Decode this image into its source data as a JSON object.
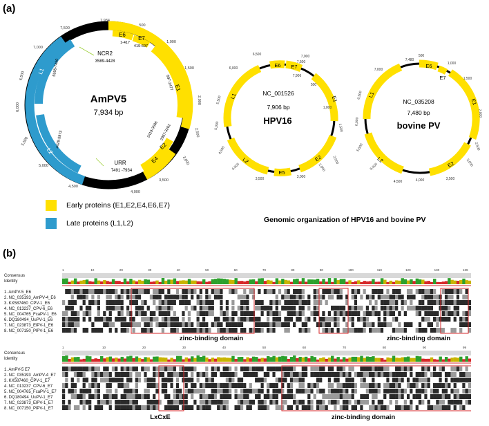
{
  "panel_a": {
    "label": "(a)",
    "ampv5": {
      "name": "AmPV5",
      "size": "7,934 bp",
      "ticks": [
        "7,934",
        "500",
        "1,000",
        "1,500",
        "2,000",
        "2,500",
        "3,000",
        "3,500",
        "4,000",
        "4,500",
        "5,000",
        "5,500",
        "6,000",
        "6,500",
        "7,000",
        "7,500"
      ],
      "genes": [
        {
          "name": "E6",
          "range": "1-417"
        },
        {
          "name": "E7",
          "range": "419-697"
        },
        {
          "name": "E1",
          "range": "697-2477"
        },
        {
          "name": "E2",
          "range": "2419-3586"
        },
        {
          "name": "E4",
          "range": "2967-3262"
        },
        {
          "name": "L2",
          "range": "4429-5973"
        },
        {
          "name": "L1",
          "range": "5995-7490"
        }
      ],
      "ncr2": {
        "name": "NCR2",
        "range": "3589-4428"
      },
      "urr": {
        "name": "URR",
        "range": "7491 -7934"
      }
    },
    "hpv16": {
      "accession": "NC_001526",
      "size": "7,906 bp",
      "name": "HPV16",
      "ticks": [
        "7,906",
        "500",
        "1,000",
        "1,500",
        "2,000",
        "2,500",
        "3,000",
        "3,500",
        "4,000",
        "4,500",
        "5,000",
        "5,500",
        "6,000",
        "6,500",
        "7,000",
        "7,500"
      ],
      "genes": [
        "E6",
        "E7",
        "E1",
        "E2",
        "E5",
        "L2",
        "L1"
      ]
    },
    "bovine": {
      "accession": "NC_035208",
      "size": "7,480 bp",
      "name": "bovine PV",
      "ticks": [
        "7,480",
        "500",
        "1,000",
        "1,500",
        "2,000",
        "2,500",
        "3,000",
        "3,500",
        "4,000",
        "4,500",
        "5,000",
        "5,500",
        "6,000",
        "6,500",
        "7,000"
      ],
      "genes": [
        "E6",
        "E7",
        "E1",
        "E2",
        "L2",
        "L1"
      ]
    },
    "legend": [
      {
        "label": "Early proteins   (E1,E2,E4,E6,E7)",
        "color": "#ffe000"
      },
      {
        "label": "Late proteins  (L1,L2)",
        "color": "#2e9bcd"
      }
    ],
    "caption": "Genomic organization of HPV16 and bovine PV"
  },
  "panel_b": {
    "label": "(b)",
    "top_block": {
      "rows": [
        "Consensus",
        "Identity",
        "",
        "1. AmPV-5_E6",
        "2. NC_035193_AmPV-4_E6",
        "3. KX587460_CPV-1_E6",
        "4. NC_013237_CPV-6_E6",
        "5. NC_004765_FcaPV-1_E6",
        "6. DQ180494_UuPV-1_E6",
        "7. NC_023873_ElPV-1_E6",
        "8. NC_007150_PlPV-1_E6"
      ],
      "ruler": [
        "1",
        "10",
        "20",
        "30",
        "40",
        "50",
        "60",
        "70",
        "80",
        "90",
        "100",
        "110",
        "120",
        "130",
        "139"
      ],
      "domains": [
        "zinc-binding domain",
        "zinc-binding domain"
      ]
    },
    "bottom_block": {
      "rows": [
        "Consensus",
        "Identity",
        "",
        "1. AmPV-5 E7",
        "2. NC_035193_AmPV-4_E7",
        "3. KX587460_CPV-1_E7",
        "4. NC_013237_CPV-6_E7",
        "5. NC_004765_FcaPV-1_E7",
        "6. DQ180494_UuPV-1_E7",
        "7. NC_023873_ElPV-1_E7",
        "8. NC_007150_PlPV-1_E7"
      ],
      "ruler": [
        "1",
        "10",
        "20",
        "30",
        "40",
        "50",
        "60",
        "70",
        "80",
        "90",
        "99"
      ],
      "domains": [
        "LxCxE",
        "zinc-binding domain"
      ]
    }
  }
}
